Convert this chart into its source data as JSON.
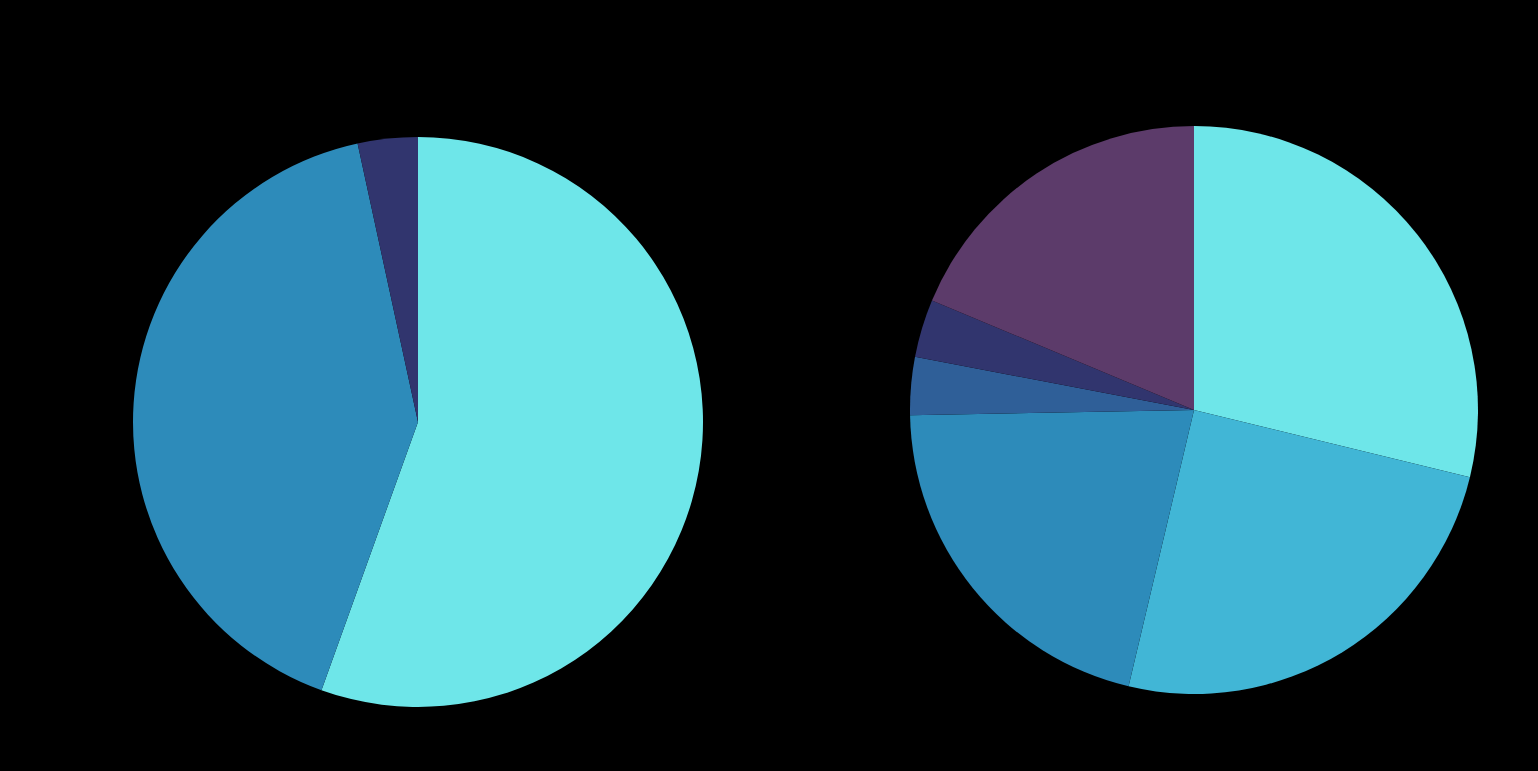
{
  "chart_data": [
    {
      "type": "pie",
      "categories": [
        null,
        null,
        null
      ],
      "values": [
        55.5,
        41.1,
        3.4
      ],
      "colors": [
        "#6ee6e9",
        "#2d8bba",
        "#31356e"
      ]
    },
    {
      "type": "pie",
      "categories": [
        null,
        null,
        null,
        null,
        null,
        null
      ],
      "values": [
        28.8,
        24.9,
        21.0,
        3.3,
        3.3,
        18.7
      ],
      "colors": [
        "#6ee6e9",
        "#41b6d6",
        "#2d8bba",
        "#2f5f98",
        "#31356e",
        "#5c3b6a"
      ]
    }
  ]
}
